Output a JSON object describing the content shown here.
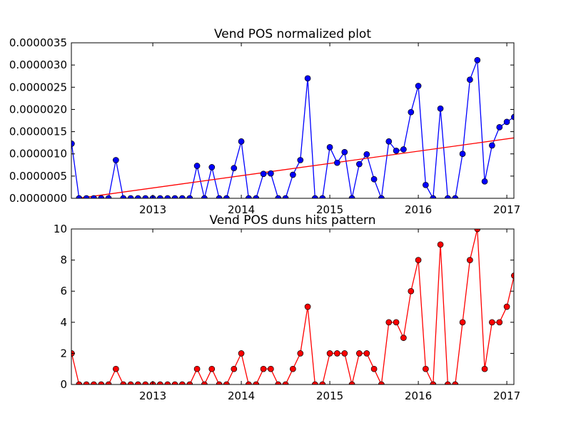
{
  "chart_data": [
    {
      "type": "line",
      "title": "Vend POS normalized plot",
      "xlabel": "",
      "ylabel": "",
      "xlim": [
        2012.08,
        2017.08
      ],
      "ylim": [
        0,
        3.5e-06
      ],
      "x_tick_labels": [
        "2013",
        "2014",
        "2015",
        "2016",
        "2017"
      ],
      "x_tick_values": [
        2013,
        2014,
        2015,
        2016,
        2017
      ],
      "y_tick_labels": [
        "0.0000000",
        "0.0000005",
        "0.0000010",
        "0.0000015",
        "0.0000020",
        "0.0000025",
        "0.0000030",
        "0.0000035"
      ],
      "y_tick_values": [
        0,
        5e-07,
        1e-06,
        1.5e-06,
        2e-06,
        2.5e-06,
        3e-06,
        3.5e-06
      ],
      "grid": false,
      "line_color": "#0000ff",
      "marker_color": "#0000ff",
      "x": [
        2012.083,
        2012.167,
        2012.25,
        2012.333,
        2012.417,
        2012.5,
        2012.583,
        2012.667,
        2012.75,
        2012.833,
        2012.917,
        2013.0,
        2013.083,
        2013.167,
        2013.25,
        2013.333,
        2013.417,
        2013.5,
        2013.583,
        2013.667,
        2013.75,
        2013.833,
        2013.917,
        2014.0,
        2014.083,
        2014.167,
        2014.25,
        2014.333,
        2014.417,
        2014.5,
        2014.583,
        2014.667,
        2014.75,
        2014.833,
        2014.917,
        2015.0,
        2015.083,
        2015.167,
        2015.25,
        2015.333,
        2015.417,
        2015.5,
        2015.583,
        2015.667,
        2015.75,
        2015.833,
        2015.917,
        2016.0,
        2016.083,
        2016.167,
        2016.25,
        2016.333,
        2016.417,
        2016.5,
        2016.583,
        2016.667,
        2016.75,
        2016.833,
        2016.917,
        2017.0,
        2017.083
      ],
      "series": [
        {
          "values": [
            1.23e-06,
            0,
            0,
            0,
            0,
            0,
            8.6e-07,
            0,
            0,
            0,
            0,
            0,
            0,
            0,
            0,
            0,
            0,
            7.3e-07,
            0,
            7e-07,
            0,
            0,
            6.8e-07,
            1.28e-06,
            0,
            0,
            5.5e-07,
            5.6e-07,
            0,
            0,
            5.3e-07,
            8.6e-07,
            2.7e-06,
            0,
            0,
            1.15e-06,
            8e-07,
            1.04e-06,
            0,
            7.7e-07,
            9.9e-07,
            4.3e-07,
            0,
            1.28e-06,
            1.07e-06,
            1.1e-06,
            1.94e-06,
            2.53e-06,
            3e-07,
            0,
            2.02e-06,
            0,
            0,
            1e-06,
            2.67e-06,
            3.11e-06,
            3.8e-07,
            1.19e-06,
            1.6e-06,
            1.72e-06,
            1.83e-06
          ]
        }
      ],
      "trend_line": {
        "color": "#ff0000",
        "x": [
          2012.083,
          2017.083
        ],
        "y": [
          -2e-08,
          1.36e-06
        ]
      }
    },
    {
      "type": "line",
      "title": "Vend POS duns hits pattern",
      "xlabel": "",
      "ylabel": "",
      "xlim": [
        2012.08,
        2017.08
      ],
      "ylim": [
        0,
        10
      ],
      "x_tick_labels": [
        "2013",
        "2014",
        "2015",
        "2016",
        "2017"
      ],
      "x_tick_values": [
        2013,
        2014,
        2015,
        2016,
        2017
      ],
      "y_tick_labels": [
        "0",
        "2",
        "4",
        "6",
        "8",
        "10"
      ],
      "y_tick_values": [
        0,
        2,
        4,
        6,
        8,
        10
      ],
      "grid": false,
      "line_color": "#ff0000",
      "marker_color": "#ff0000",
      "x": [
        2012.083,
        2012.167,
        2012.25,
        2012.333,
        2012.417,
        2012.5,
        2012.583,
        2012.667,
        2012.75,
        2012.833,
        2012.917,
        2013.0,
        2013.083,
        2013.167,
        2013.25,
        2013.333,
        2013.417,
        2013.5,
        2013.583,
        2013.667,
        2013.75,
        2013.833,
        2013.917,
        2014.0,
        2014.083,
        2014.167,
        2014.25,
        2014.333,
        2014.417,
        2014.5,
        2014.583,
        2014.667,
        2014.75,
        2014.833,
        2014.917,
        2015.0,
        2015.083,
        2015.167,
        2015.25,
        2015.333,
        2015.417,
        2015.5,
        2015.583,
        2015.667,
        2015.75,
        2015.833,
        2015.917,
        2016.0,
        2016.083,
        2016.167,
        2016.25,
        2016.333,
        2016.417,
        2016.5,
        2016.583,
        2016.667,
        2016.75,
        2016.833,
        2016.917,
        2017.0,
        2017.083
      ],
      "series": [
        {
          "values": [
            2,
            0,
            0,
            0,
            0,
            0,
            1,
            0,
            0,
            0,
            0,
            0,
            0,
            0,
            0,
            0,
            0,
            1,
            0,
            1,
            0,
            0,
            1,
            2,
            0,
            0,
            1,
            1,
            0,
            0,
            1,
            2,
            5,
            0,
            0,
            2,
            2,
            2,
            0,
            2,
            2,
            1,
            0,
            4,
            4,
            3,
            6,
            8,
            1,
            0,
            9,
            0,
            0,
            4,
            8,
            10,
            1,
            4,
            4,
            5,
            7
          ]
        }
      ]
    }
  ]
}
